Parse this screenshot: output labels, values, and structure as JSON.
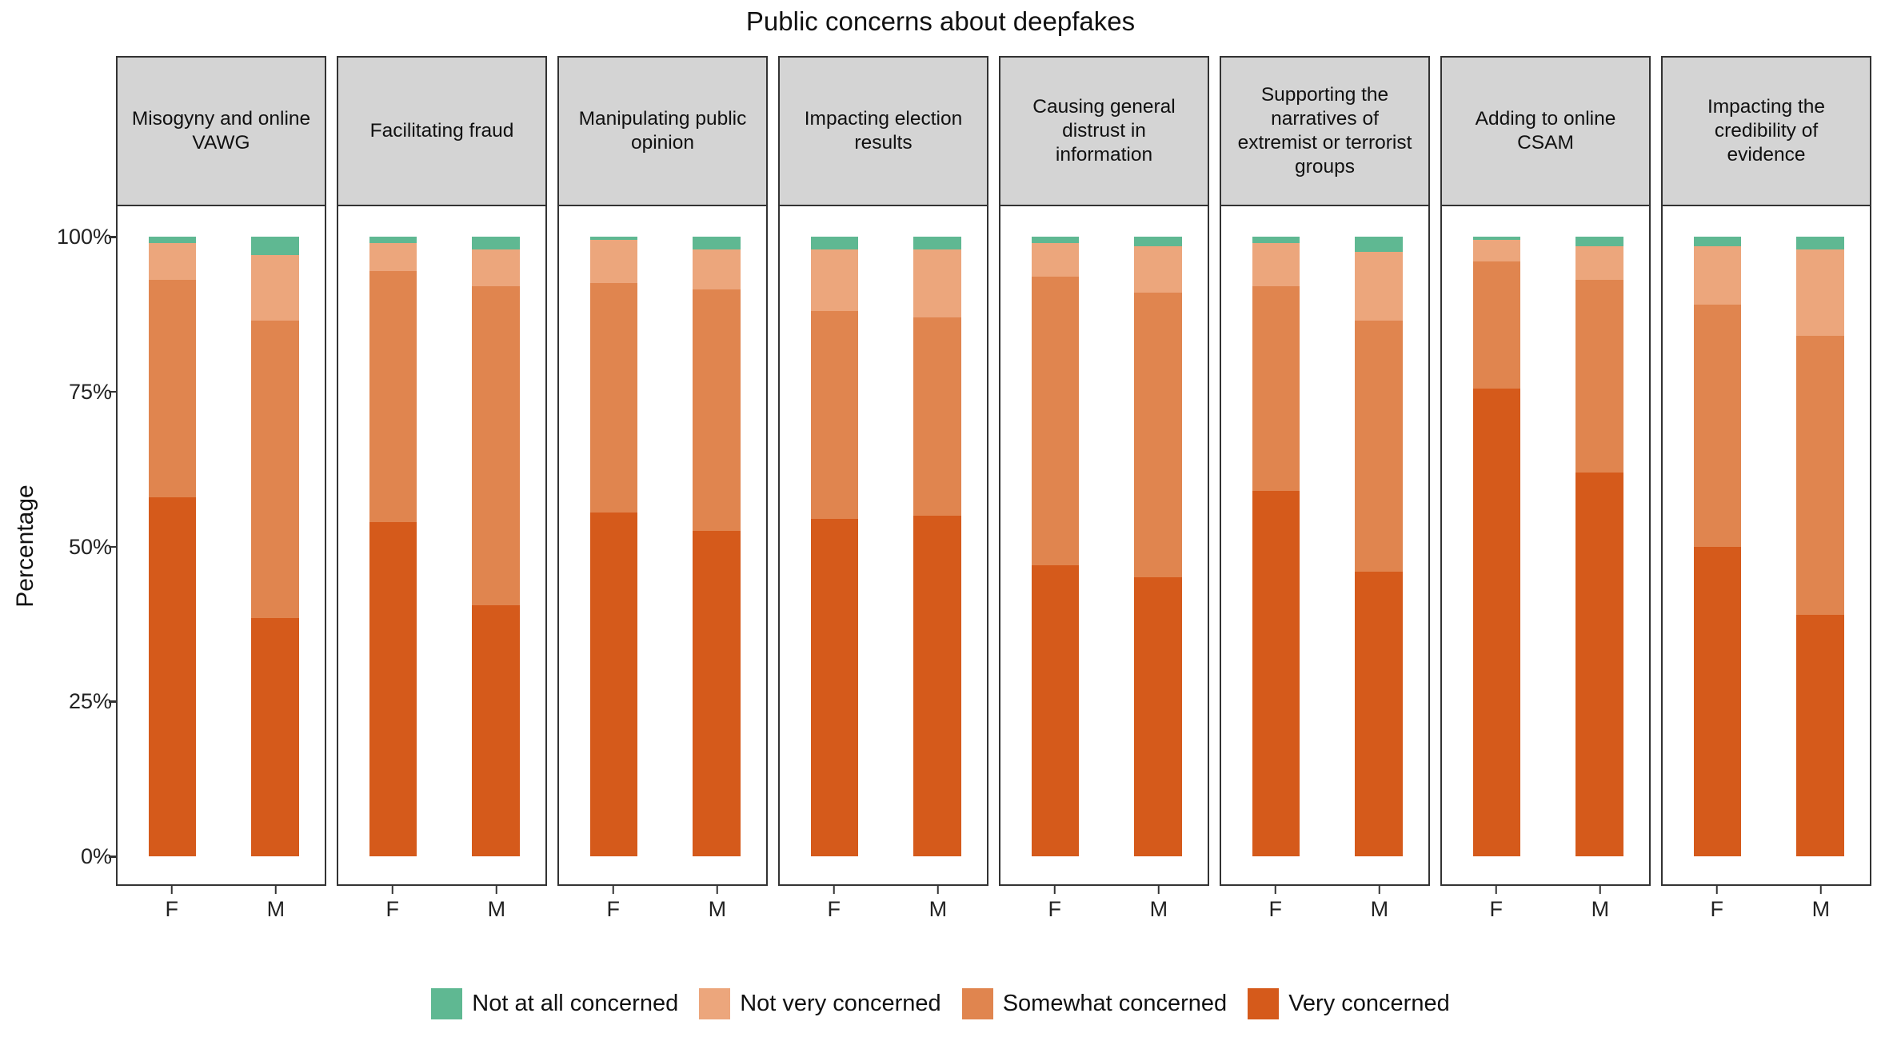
{
  "title": "Public concerns about deepfakes",
  "y_axis": {
    "label": "Percentage",
    "tick_labels": [
      "100%",
      "75%",
      "50%",
      "25%",
      "0%"
    ]
  },
  "x_axis": {
    "categories": [
      "F",
      "M"
    ]
  },
  "legend": [
    {
      "label": "Not at all concerned",
      "color": "#5FB892"
    },
    {
      "label": "Not very concerned",
      "color": "#ECA67C"
    },
    {
      "label": "Somewhat concerned",
      "color": "#E0854F"
    },
    {
      "label": "Very concerned",
      "color": "#D55A1B"
    }
  ],
  "colors": {
    "strip_background": "#d4d4d4",
    "panel_border": "#333333",
    "very_concerned": "#D55A1B",
    "somewhat_concerned": "#E0854F",
    "not_very_concerned": "#ECA67C",
    "not_at_all_concerned": "#5FB892"
  },
  "chart_data": {
    "type": "bar",
    "subtype": "stacked-percent-faceted",
    "title": "Public concerns about deepfakes",
    "xlabel": "",
    "ylabel": "Percentage",
    "ylim": [
      0,
      100
    ],
    "yticks": [
      100,
      75,
      50,
      25,
      0
    ],
    "grid": false,
    "legend_position": "bottom",
    "categories": [
      "F",
      "M"
    ],
    "stack_order_bottom_to_top": [
      "Very concerned",
      "Somewhat concerned",
      "Not very concerned",
      "Not at all concerned"
    ],
    "facets": [
      {
        "label": "Misogyny and online VAWG",
        "bars": [
          {
            "category": "F",
            "values": [
              58,
              35,
              6,
              1
            ]
          },
          {
            "category": "M",
            "values": [
              38.5,
              48,
              10.5,
              3
            ]
          }
        ]
      },
      {
        "label": "Facilitating fraud",
        "bars": [
          {
            "category": "F",
            "values": [
              54,
              40.5,
              4.5,
              1
            ]
          },
          {
            "category": "M",
            "values": [
              40.5,
              51.5,
              6,
              2
            ]
          }
        ]
      },
      {
        "label": "Manipulating public opinion",
        "bars": [
          {
            "category": "F",
            "values": [
              55.5,
              37,
              7,
              0.5
            ]
          },
          {
            "category": "M",
            "values": [
              52.5,
              39,
              6.5,
              2
            ]
          }
        ]
      },
      {
        "label": "Impacting election results",
        "bars": [
          {
            "category": "F",
            "values": [
              54.5,
              33.5,
              10,
              2
            ]
          },
          {
            "category": "M",
            "values": [
              55,
              32,
              11,
              2
            ]
          }
        ]
      },
      {
        "label": "Causing general distrust in information",
        "bars": [
          {
            "category": "F",
            "values": [
              47,
              46.5,
              5.5,
              1
            ]
          },
          {
            "category": "M",
            "values": [
              45,
              46,
              7.5,
              1.5
            ]
          }
        ]
      },
      {
        "label": "Supporting the narratives of extremist or terrorist groups",
        "bars": [
          {
            "category": "F",
            "values": [
              59,
              33,
              7,
              1
            ]
          },
          {
            "category": "M",
            "values": [
              46,
              40.5,
              11,
              2.5
            ]
          }
        ]
      },
      {
        "label": "Adding to online CSAM",
        "bars": [
          {
            "category": "F",
            "values": [
              75.5,
              20.5,
              3.5,
              0.5
            ]
          },
          {
            "category": "M",
            "values": [
              62,
              31,
              5.5,
              1.5
            ]
          }
        ]
      },
      {
        "label": "Impacting the credibility of evidence",
        "bars": [
          {
            "category": "F",
            "values": [
              50,
              39,
              9.5,
              1.5
            ]
          },
          {
            "category": "M",
            "values": [
              39,
              45,
              14,
              2
            ]
          }
        ]
      }
    ]
  }
}
